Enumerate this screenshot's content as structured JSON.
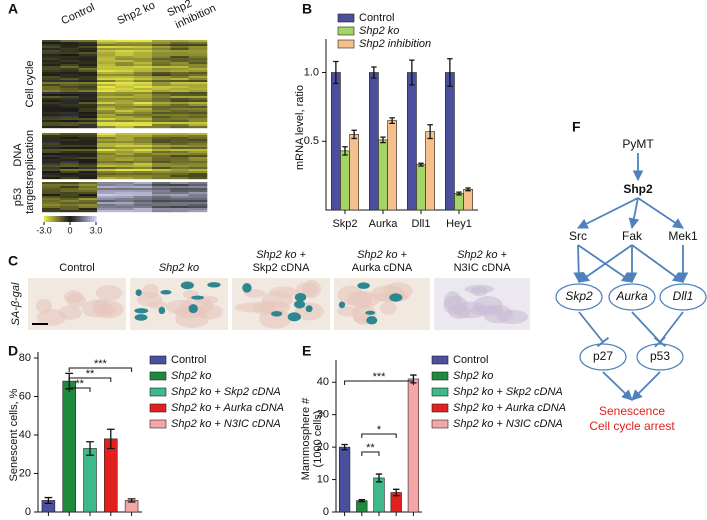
{
  "panel_labels": [
    "A",
    "B",
    "C",
    "D",
    "E",
    "F"
  ],
  "heatmap": {
    "column_labels": [
      [
        "Control"
      ],
      [
        "Shp2 ko"
      ],
      [
        "Shp2",
        "inhibition"
      ]
    ],
    "row_labels": [
      [
        "Cell cycle"
      ],
      [
        "DNA",
        "replication"
      ],
      [
        "p53",
        "targets"
      ]
    ],
    "colorbar": {
      "lim": [
        -3,
        3
      ],
      "ticks": [
        {
          "value": -3,
          "label": "-3.0"
        },
        0,
        {
          "value": 3,
          "label": "3.0"
        }
      ]
    }
  },
  "images": {
    "row_label": "SA-β-gal",
    "labels": [
      [
        "Control"
      ],
      [
        "Shp2 ko"
      ],
      [
        "Shp2 ko +",
        "Skp2 cDNA"
      ],
      [
        "Shp2 ko +",
        "Aurka cDNA"
      ],
      [
        "Shp2 ko +",
        "N3IC cDNA"
      ]
    ]
  },
  "chart_data": [
    {
      "type": "bar",
      "ylabel": [
        "mRNA level, ratio"
      ],
      "categories": [
        "Skp2",
        "Aurka",
        "Dll1",
        "Hey1"
      ],
      "series": [
        {
          "name": "Control",
          "color": "#4b4f9e",
          "values": [
            1,
            1,
            1,
            1
          ],
          "errors": [
            0.08,
            0.04,
            0.09,
            0.1
          ]
        },
        {
          "name": "Shp2 ko",
          "color": "#a3d465",
          "values": [
            0.43,
            0.51,
            0.33,
            0.12
          ],
          "errors": [
            0.03,
            0.02,
            0.01,
            0.01
          ]
        },
        {
          "name": "Shp2 inhibition",
          "color": "#f5c08c",
          "values": [
            0.55,
            0.65,
            0.57,
            0.15
          ],
          "errors": [
            0.03,
            0.02,
            0.05,
            0.01
          ]
        }
      ],
      "ylim": [
        0,
        1.2
      ],
      "yticks": [
        0.5,
        {
          "value": 1,
          "label": "1.0"
        }
      ]
    },
    {
      "type": "bar",
      "ylabel": [
        "Senescent cells, %"
      ],
      "series": [
        {
          "name": "Control",
          "color": "#4b4f9e",
          "values": [
            6
          ],
          "errors": [
            1.5
          ]
        },
        {
          "name": "Shp2 ko",
          "color": "#1f8a3b",
          "values": [
            68
          ],
          "errors": [
            4
          ]
        },
        {
          "name": "Shp2 ko + Skp2 cDNA",
          "color": "#3db98b",
          "values": [
            33
          ],
          "errors": [
            3.5
          ]
        },
        {
          "name": "Shp2 ko + Aurka cDNA",
          "color": "#e2211f",
          "values": [
            38
          ],
          "errors": [
            5
          ]
        },
        {
          "name": "Shp2 ko + N3IC cDNA",
          "color": "#f4a7a7",
          "values": [
            6
          ],
          "errors": [
            0.8
          ]
        }
      ],
      "annotations": [
        "***",
        "**",
        "**"
      ],
      "ylim": [
        0,
        80
      ],
      "yticks": [
        0,
        20,
        40,
        60,
        80
      ]
    },
    {
      "type": "bar",
      "ylabel": [
        "Mammosphere #",
        "(1000 cells)"
      ],
      "series": [
        {
          "name": "Control",
          "color": "#4b4f9e",
          "values": [
            20
          ],
          "errors": [
            0.8
          ]
        },
        {
          "name": "Shp2 ko",
          "color": "#1f8a3b",
          "values": [
            3.5
          ],
          "errors": [
            0.3
          ]
        },
        {
          "name": "Shp2 ko + Skp2 cDNA",
          "color": "#3db98b",
          "values": [
            10.5
          ],
          "errors": [
            1.2
          ]
        },
        {
          "name": "Shp2 ko + Aurka cDNA",
          "color": "#e2211f",
          "values": [
            6
          ],
          "errors": [
            1
          ]
        },
        {
          "name": "Shp2 ko + N3IC cDNA",
          "color": "#f4a7a7",
          "values": [
            41
          ],
          "errors": [
            1.2
          ]
        }
      ],
      "annotations": [
        "***",
        "*",
        "**"
      ],
      "ylim": [
        0,
        45
      ],
      "yticks": [
        0,
        10,
        20,
        30,
        40
      ]
    }
  ],
  "diagram": {
    "nodes": [
      "PyMT",
      "Shp2",
      "Src",
      "Fak",
      "Mek1",
      "Skp2",
      "Aurka",
      "Dll1",
      "p27",
      "p53"
    ],
    "outcome": [
      "Senescence",
      "Cell cycle arrest"
    ]
  }
}
